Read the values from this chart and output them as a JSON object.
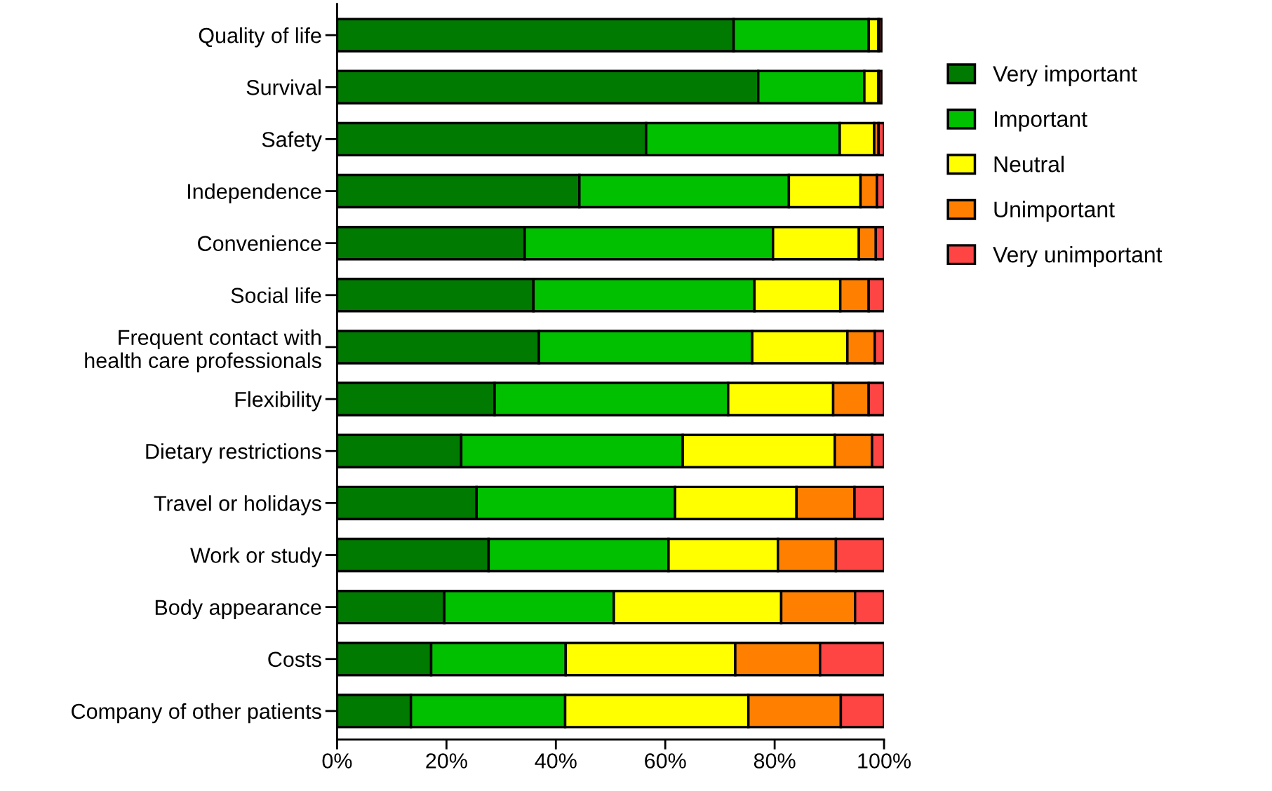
{
  "chart_data": {
    "type": "bar",
    "orientation": "horizontal",
    "stacked": true,
    "categories": [
      "Quality of life",
      "Survival",
      "Safety",
      "Independence",
      "Convenience",
      "Social life",
      "Frequent contact with\nhealth care professionals",
      "Flexibility",
      "Dietary restrictions",
      "Travel or holidays",
      "Work or study",
      "Body appearance",
      "Costs",
      "Company of other patients"
    ],
    "series": [
      {
        "name": "Very important",
        "color": "#007a00",
        "values": [
          72.5,
          77.0,
          56.5,
          44.3,
          34.3,
          35.9,
          36.9,
          28.8,
          22.7,
          25.5,
          27.7,
          19.6,
          17.2,
          13.5
        ]
      },
      {
        "name": "Important",
        "color": "#00c000",
        "values": [
          24.7,
          19.4,
          35.4,
          38.3,
          45.4,
          40.4,
          39.0,
          42.7,
          40.5,
          36.3,
          32.9,
          31.0,
          24.6,
          28.2
        ]
      },
      {
        "name": "Neutral",
        "color": "#ffff00",
        "values": [
          1.8,
          2.6,
          6.3,
          13.1,
          15.7,
          15.7,
          17.4,
          19.2,
          27.8,
          22.2,
          20.0,
          30.6,
          31.0,
          33.5
        ]
      },
      {
        "name": "Unimportant",
        "color": "#ff8000",
        "values": [
          null,
          null,
          0.8,
          3.0,
          3.1,
          5.2,
          5.0,
          6.5,
          6.8,
          10.6,
          10.6,
          13.5,
          15.5,
          16.9
        ]
      },
      {
        "name": "Very unimportant",
        "color": "#ff4444",
        "values": [
          0.5,
          0.5,
          1.0,
          1.3,
          1.5,
          2.8,
          1.7,
          2.8,
          2.2,
          5.4,
          8.8,
          5.3,
          11.7,
          7.9
        ]
      }
    ],
    "xlim": [
      0,
      100
    ],
    "xticks": [
      {
        "value": 0,
        "label": "0%"
      },
      {
        "value": 20,
        "label": "20%"
      },
      {
        "value": 40,
        "label": "40%"
      },
      {
        "value": 60,
        "label": "60%"
      },
      {
        "value": 80,
        "label": "80%"
      },
      {
        "value": 100,
        "label": "100%"
      }
    ],
    "legend": "right",
    "grid": false
  }
}
